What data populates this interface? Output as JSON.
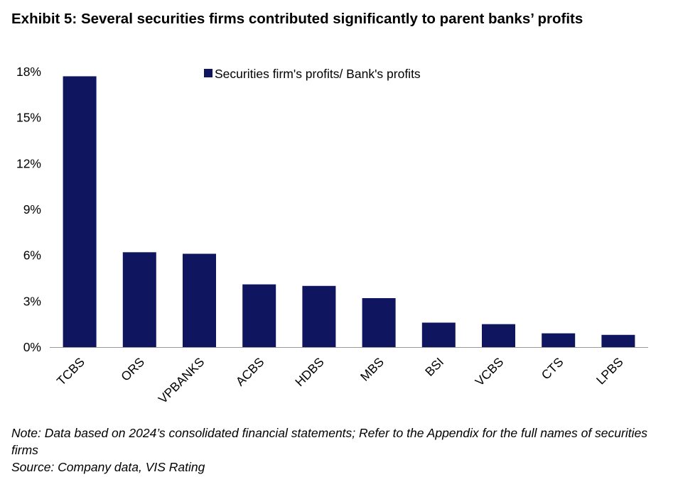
{
  "title": "Exhibit 5: Several securities firms contributed significantly to parent banks’ profits",
  "note": "Note: Data based on 2024’s consolidated financial statements; Refer to the Appendix for the full names of securities firms",
  "source": "Source: Company data, VIS Rating",
  "colors": {
    "bar": "#10155f",
    "axis": "#000000"
  },
  "chart_data": {
    "type": "bar",
    "categories": [
      "TCBS",
      "ORS",
      "VPBANKS",
      "ACBS",
      "HDBS",
      "MBS",
      "BSI",
      "VCBS",
      "CTS",
      "LPBS"
    ],
    "series": [
      {
        "name": "Securities firm's profits/ Bank's profits",
        "values": [
          17.7,
          6.2,
          6.1,
          4.1,
          4.0,
          3.2,
          1.6,
          1.5,
          0.9,
          0.8
        ]
      }
    ],
    "ylim": [
      0,
      18
    ],
    "yticks": [
      "0%",
      "3%",
      "6%",
      "9%",
      "12%",
      "15%",
      "18%"
    ],
    "ytick_values": [
      0,
      3,
      6,
      9,
      12,
      15,
      18
    ],
    "legend_position": "top-center",
    "grid": false
  }
}
